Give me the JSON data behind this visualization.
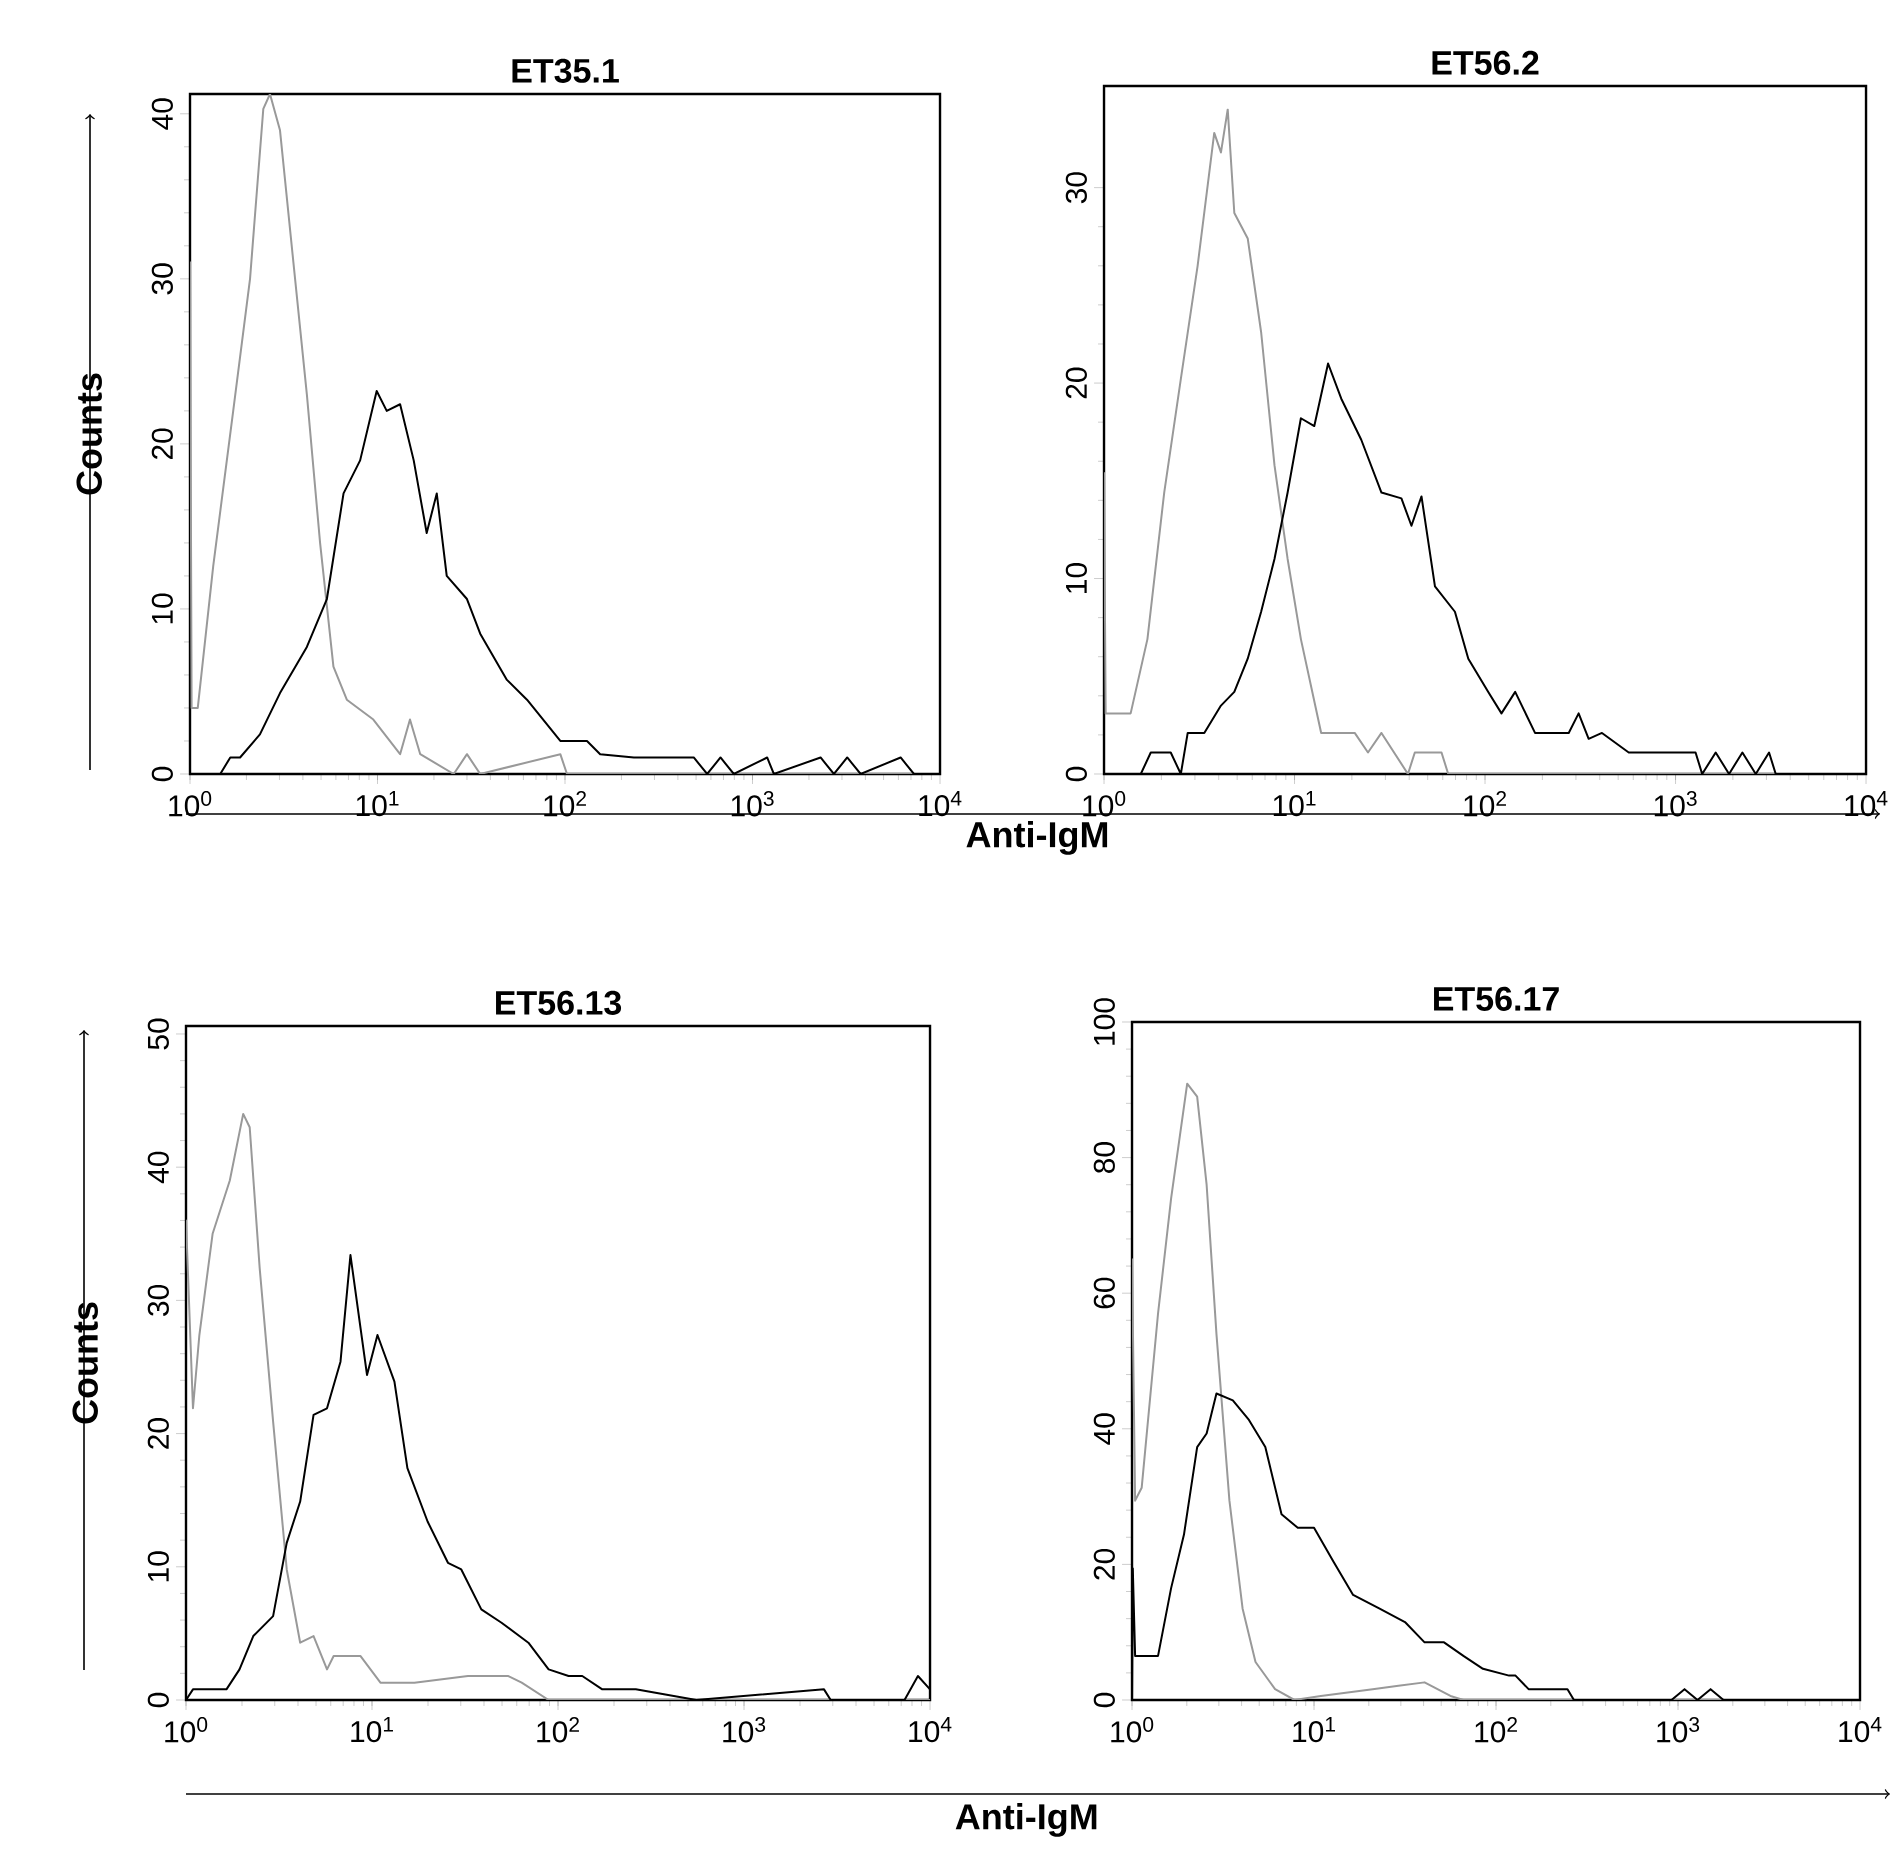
{
  "chart_data": [
    {
      "type": "line",
      "title": "ET35.1",
      "ylabel": "Counts",
      "xlabel": "Anti-IgM",
      "log": "x",
      "xlim": [
        1,
        10000
      ],
      "ylim": [
        0,
        41.2
      ],
      "xticks": [
        {
          "value": 1,
          "label": "10$^{0}$"
        },
        {
          "value": 10,
          "label": "10$^{1}$"
        },
        {
          "value": 100,
          "label": "10$^{2}$"
        },
        {
          "value": 1000,
          "label": "10$^{3}$"
        },
        {
          "value": 10000,
          "label": "10$^{4}$"
        }
      ],
      "yticks": [
        0,
        10,
        20,
        30,
        40
      ],
      "series": [
        {
          "color": "#999999",
          "x": [
            1,
            1.02,
            1.1,
            1.33,
            1.7,
            2.09,
            2.46,
            2.67,
            3.02,
            3.56,
            4.2,
            4.94,
            5.82,
            6.86,
            9.5,
            13.2,
            14.9,
            16.9,
            25.5,
            30,
            35.3,
            94.4,
            102.5,
            10000
          ],
          "values": [
            31,
            4,
            4,
            12.6,
            22,
            30,
            40.3,
            41.2,
            39,
            31,
            23,
            14,
            6.5,
            4.5,
            3.3,
            1.2,
            3.3,
            1.2,
            0,
            1.2,
            0,
            1.2,
            0,
            0
          ]
        },
        {
          "color": "#000000",
          "x": [
            1,
            1.45,
            1.64,
            1.85,
            2.36,
            3.02,
            4.2,
            5.37,
            6.59,
            8.08,
            9.9,
            11.2,
            13.2,
            15.6,
            18.3,
            20.7,
            23.4,
            30,
            35.3,
            49,
            62.7,
            94.4,
            131,
            154,
            233,
            350,
            486,
            573,
            675,
            795,
            1197,
            1300,
            2307,
            2717,
            3200,
            3773,
            6166,
            7261,
            10000
          ],
          "values": [
            0,
            0,
            1,
            1,
            2.4,
            4.9,
            7.7,
            10.6,
            17,
            19,
            23.2,
            22,
            22.4,
            19,
            14.6,
            17,
            12,
            10.6,
            8.5,
            5.7,
            4.5,
            2,
            2,
            1.2,
            1,
            1,
            1,
            0,
            1,
            0,
            1,
            0,
            1,
            0,
            1,
            0,
            1,
            0,
            0
          ]
        }
      ]
    },
    {
      "type": "line",
      "title": "ET56.2",
      "log": "x",
      "xlim": [
        1,
        10000
      ],
      "ylim": [
        0,
        35.2
      ],
      "xticks": [
        {
          "value": 1,
          "label": "10$^{0}$"
        },
        {
          "value": 10,
          "label": "10$^{1}$"
        },
        {
          "value": 100,
          "label": "10$^{2}$"
        },
        {
          "value": 1000,
          "label": "10$^{3}$"
        },
        {
          "value": 10000,
          "label": "10$^{4}$"
        }
      ],
      "yticks": [
        0,
        10,
        20,
        30
      ],
      "series": [
        {
          "color": "#999999",
          "x": [
            1,
            1.02,
            1.38,
            1.69,
            2.07,
            2.53,
            3.1,
            3.79,
            4.11,
            4.46,
            4.83,
            5.68,
            6.68,
            7.85,
            9.2,
            10.8,
            13.8,
            20.7,
            24.3,
            28.6,
            39.4,
            42.8,
            59.1,
            64.1,
            10000
          ],
          "values": [
            15.4,
            3.1,
            3.1,
            6.9,
            14.4,
            20.2,
            26,
            32.8,
            31.8,
            34,
            28.7,
            27.4,
            22.6,
            15.8,
            11,
            6.9,
            2.1,
            2.1,
            1.1,
            2.1,
            0,
            1.1,
            1.1,
            0,
            0
          ]
        },
        {
          "color": "#000000",
          "x": [
            1,
            1.56,
            1.76,
            2.24,
            2.53,
            2.75,
            3.36,
            4.11,
            4.83,
            5.68,
            6.68,
            7.85,
            9.2,
            10.8,
            12.7,
            15,
            17.6,
            22.4,
            28.6,
            36.4,
            41.1,
            46.4,
            54.6,
            69.5,
            81.7,
            104,
            122,
            144,
            183,
            275,
            310,
            350,
            411,
            568,
            1274,
            1380,
            1625,
            1910,
            2244,
            2637,
            3097,
            3357,
            10000
          ],
          "values": [
            0,
            0,
            1.1,
            1.1,
            0,
            2.1,
            2.1,
            3.5,
            4.2,
            5.9,
            8.3,
            11,
            14.4,
            18.2,
            17.8,
            21,
            19.2,
            17.1,
            14.4,
            14.1,
            12.7,
            14.2,
            9.6,
            8.3,
            5.9,
            4.2,
            3.1,
            4.2,
            2.1,
            2.1,
            3.1,
            1.8,
            2.1,
            1.1,
            1.1,
            0,
            1.1,
            0,
            1.1,
            0,
            1.1,
            0,
            0
          ]
        }
      ]
    },
    {
      "type": "line",
      "title": "ET56.13",
      "ylabel": "Counts",
      "xlabel": "Anti-IgM",
      "log": "x",
      "xlim": [
        1,
        10000
      ],
      "ylim": [
        0,
        50.6
      ],
      "xticks": [
        {
          "value": 1,
          "label": "10$^{0}$"
        },
        {
          "value": 10,
          "label": "10$^{1}$"
        },
        {
          "value": 100,
          "label": "10$^{2}$"
        },
        {
          "value": 1000,
          "label": "10$^{3}$"
        },
        {
          "value": 10000,
          "label": "10$^{4}$"
        }
      ],
      "yticks": [
        0,
        10,
        20,
        30,
        40,
        50
      ],
      "series": [
        {
          "color": "#999999",
          "x": [
            1,
            1.09,
            1.18,
            1.39,
            1.72,
            2.03,
            2.2,
            2.49,
            2.94,
            3.48,
            4.11,
            4.85,
            5.73,
            6.22,
            8.68,
            11.1,
            16.9,
            32.8,
            54.1,
            63.8,
            89,
            10000
          ],
          "values": [
            36,
            21.9,
            27.4,
            35,
            39,
            44,
            43,
            32.4,
            20.9,
            9.8,
            4.3,
            4.8,
            2.3,
            3.3,
            3.3,
            1.3,
            1.3,
            1.8,
            1.8,
            1.3,
            0,
            0
          ]
        },
        {
          "color": "#000000",
          "x": [
            1,
            1.09,
            1.65,
            1.94,
            2.3,
            2.94,
            3.48,
            4.11,
            4.85,
            5.73,
            6.77,
            7.66,
            8.68,
            9.4,
            10.7,
            13.2,
            15.5,
            19.9,
            25.6,
            30.2,
            38.7,
            49.7,
            69.3,
            89,
            114,
            135,
            173,
            262,
            554,
            2692,
            2924,
            7295,
            8610,
            10000
          ],
          "values": [
            0,
            0.8,
            0.8,
            2.3,
            4.8,
            6.3,
            11.8,
            14.9,
            21.4,
            21.9,
            25.4,
            33.4,
            27.9,
            24.4,
            27.4,
            23.9,
            17.4,
            13.4,
            10.3,
            9.8,
            6.8,
            5.8,
            4.3,
            2.3,
            1.8,
            1.8,
            0.8,
            0.8,
            0,
            0.8,
            0,
            0,
            1.8,
            0.8
          ]
        }
      ]
    },
    {
      "type": "line",
      "title": "ET56.17",
      "log": "x",
      "xlim": [
        1,
        10000
      ],
      "ylim": [
        0,
        100
      ],
      "xticks": [
        {
          "value": 1,
          "label": "10$^{0}$"
        },
        {
          "value": 10,
          "label": "10$^{1}$"
        },
        {
          "value": 100,
          "label": "10$^{2}$"
        },
        {
          "value": 1000,
          "label": "10$^{3}$"
        },
        {
          "value": 10000,
          "label": "10$^{4}$"
        }
      ],
      "yticks": [
        0,
        20,
        40,
        60,
        80,
        100
      ],
      "series": [
        {
          "color": "#999999",
          "x": [
            1,
            1.04,
            1.13,
            1.39,
            1.64,
            2.01,
            2.28,
            2.57,
            2.91,
            3.43,
            4.05,
            4.77,
            6.11,
            7.81,
            10.9,
            21,
            29.1,
            40.5,
            56.2,
            66.2,
            10000
          ],
          "values": [
            65,
            29.4,
            31.3,
            57,
            74,
            90.9,
            89,
            76,
            54,
            29.4,
            13.5,
            5.6,
            1.6,
            0,
            0.6,
            1.6,
            2.1,
            2.6,
            0.6,
            0,
            0
          ]
        },
        {
          "color": "#000000",
          "x": [
            1,
            1.01,
            1.04,
            1.39,
            1.64,
            1.93,
            2.28,
            2.57,
            2.91,
            3.58,
            4.39,
            5.4,
            6.63,
            8.14,
            10,
            12.8,
            16.4,
            22.8,
            31.6,
            40.5,
            51.8,
            66.2,
            84.8,
            118,
            128,
            151,
            247,
            268,
            921,
            1086,
            1280,
            1510,
            1778,
            10000
          ],
          "values": [
            0,
            19.4,
            6.5,
            6.5,
            16.5,
            24.4,
            37.3,
            39.3,
            45.2,
            44.2,
            41.3,
            37.3,
            27.4,
            25.4,
            25.4,
            20.4,
            15.5,
            13.5,
            11.5,
            8.5,
            8.5,
            6.5,
            4.6,
            3.6,
            3.6,
            1.6,
            1.6,
            0,
            0,
            1.6,
            0,
            1.6,
            0,
            0
          ]
        }
      ]
    }
  ]
}
